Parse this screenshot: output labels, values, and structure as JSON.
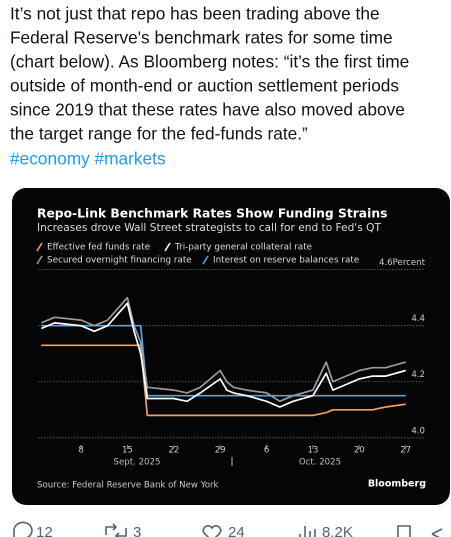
{
  "tweet": {
    "text_lines": [
      "It’s not just that repo has been trading above the",
      "Federal Reserve's benchmark rates for some time",
      "(chart below). As Bloomberg notes: “it’s the first time",
      "outside of month-end or auction settlement periods",
      "since 2019 that these rates have also moved above",
      "the target range for the fed-funds rate.”"
    ],
    "hashtags": "#economy #markets",
    "actions": {
      "replies": "12",
      "reposts": "3",
      "likes": "24",
      "views": "8.2K"
    }
  },
  "chart_data": {
    "type": "line",
    "title": "Repo-Link Benchmark Rates Show Funding Strains",
    "subtitle": "Increases drove Wall Street strategists to call for end to Fed's QT",
    "source": "Source: Federal Reserve Bank of New York",
    "brand": "Bloomberg",
    "x_groups": [
      "Sept. 2025",
      "Oct. 2025"
    ],
    "x": [
      2,
      4,
      8,
      10,
      12,
      15,
      16,
      17,
      18,
      22,
      24,
      26,
      29,
      30,
      31,
      33,
      36,
      38,
      40,
      43,
      45,
      46,
      48,
      50,
      52,
      54,
      57
    ],
    "xlim": [
      1.5,
      57.5
    ],
    "xticks": [
      8,
      15,
      22,
      29,
      {
        "value": 36,
        "label": "6"
      },
      {
        "value": 43,
        "label": "13"
      },
      {
        "value": 50,
        "label": "20"
      },
      {
        "value": 57,
        "label": "27"
      }
    ],
    "ylim": [
      3.96,
      4.62
    ],
    "yticks": [
      {
        "value": 4,
        "label": "4.0"
      },
      4.2,
      4.4,
      {
        "value": 4.6,
        "label": "4.6Percent"
      }
    ],
    "grid": true,
    "series": [
      {
        "name": "Effective fed funds rate",
        "color": "#f0a060",
        "values": [
          4.33,
          4.33,
          4.33,
          4.33,
          4.33,
          4.33,
          4.33,
          4.33,
          4.08,
          4.08,
          4.08,
          4.08,
          4.08,
          4.08,
          4.08,
          4.08,
          4.08,
          4.08,
          4.08,
          4.08,
          4.09,
          4.1,
          4.1,
          4.1,
          4.1,
          4.11,
          4.12
        ]
      },
      {
        "name": "Tri-party general collateral rate",
        "color": "#ffffff",
        "values": [
          4.39,
          4.41,
          4.4,
          4.38,
          4.4,
          4.48,
          4.38,
          4.3,
          4.14,
          4.14,
          4.13,
          4.16,
          4.21,
          4.17,
          4.16,
          4.15,
          4.13,
          4.11,
          4.13,
          4.15,
          4.23,
          4.17,
          4.19,
          4.21,
          4.22,
          4.22,
          4.24
        ]
      },
      {
        "name": "Secured overnight financing rate",
        "color": "#9a9a9a",
        "values": [
          4.41,
          4.43,
          4.42,
          4.4,
          4.42,
          4.5,
          4.4,
          4.34,
          4.18,
          4.17,
          4.16,
          4.18,
          4.24,
          4.2,
          4.18,
          4.17,
          4.16,
          4.13,
          4.15,
          4.17,
          4.27,
          4.2,
          4.22,
          4.24,
          4.25,
          4.25,
          4.27
        ]
      },
      {
        "name": "Interest on reserve balances rate",
        "color": "#4aa8f0",
        "values": [
          4.4,
          4.4,
          4.4,
          4.4,
          4.4,
          4.4,
          4.4,
          4.4,
          4.15,
          4.15,
          4.15,
          4.15,
          4.15,
          4.15,
          4.15,
          4.15,
          4.15,
          4.15,
          4.15,
          4.15,
          4.15,
          4.15,
          4.15,
          4.15,
          4.15,
          4.15,
          4.15
        ]
      }
    ]
  }
}
